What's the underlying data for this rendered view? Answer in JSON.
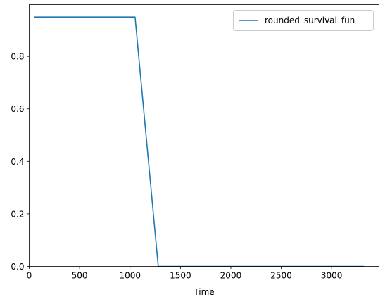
{
  "chart_data": {
    "type": "line",
    "xlabel": "Time",
    "ylabel": "",
    "xlim": [
      0,
      3470
    ],
    "ylim": [
      0,
      0.9975
    ],
    "xticks": [
      0,
      500,
      1000,
      1500,
      2000,
      2500,
      3000
    ],
    "xtick_labels": [
      "0",
      "500",
      "1000",
      "1500",
      "2000",
      "2500",
      "3000"
    ],
    "yticks": [
      0.0,
      0.2,
      0.4,
      0.6,
      0.8
    ],
    "ytick_labels": [
      "0.0",
      "0.2",
      "0.4",
      "0.6",
      "0.8"
    ],
    "grid": false,
    "legend_position": "upper right",
    "series": [
      {
        "name": "rounded_survival_fun",
        "color": "#1f77b4",
        "x": [
          50,
          1050,
          1280,
          3320
        ],
        "y": [
          0.95,
          0.95,
          0.0,
          0.0
        ]
      }
    ]
  }
}
